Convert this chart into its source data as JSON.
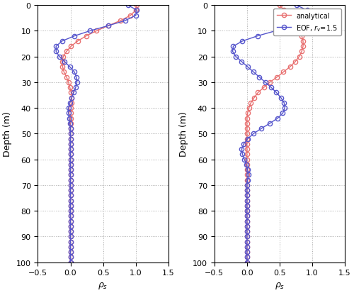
{
  "depths": [
    0,
    2,
    4,
    6,
    8,
    10,
    12,
    14,
    16,
    18,
    20,
    22,
    24,
    26,
    28,
    30,
    32,
    34,
    36,
    38,
    40,
    42,
    44,
    46,
    48,
    50,
    52,
    54,
    56,
    58,
    60,
    62,
    64,
    66,
    68,
    70,
    72,
    74,
    76,
    78,
    80,
    82,
    84,
    86,
    88,
    90,
    92,
    94,
    96,
    98,
    100
  ],
  "left_analytical": [
    1.02,
    1.0,
    0.92,
    0.77,
    0.6,
    0.42,
    0.27,
    0.14,
    0.04,
    -0.04,
    -0.09,
    -0.12,
    -0.12,
    -0.1,
    -0.07,
    -0.05,
    -0.03,
    -0.01,
    0.0,
    0.0,
    0.0,
    0.0,
    0.0,
    0.0,
    0.0,
    0.0,
    0.0,
    0.0,
    0.0,
    0.0,
    0.0,
    0.0,
    0.0,
    0.0,
    0.0,
    0.0,
    0.0,
    0.0,
    0.0,
    0.0,
    0.0,
    0.0,
    0.0,
    0.0,
    0.0,
    0.0,
    0.0,
    0.0,
    0.0,
    0.0,
    0.0
  ],
  "left_eof": [
    0.9,
    1.0,
    1.02,
    0.88,
    0.62,
    0.35,
    0.13,
    -0.05,
    -0.17,
    -0.21,
    -0.2,
    -0.15,
    -0.08,
    -0.01,
    0.04,
    0.07,
    0.08,
    0.07,
    0.05,
    0.03,
    0.01,
    -0.01,
    -0.02,
    -0.02,
    -0.01,
    -0.01,
    0.0,
    0.0,
    0.0,
    0.0,
    0.0,
    0.0,
    0.0,
    0.0,
    0.0,
    0.0,
    0.0,
    0.0,
    0.0,
    0.0,
    0.0,
    0.0,
    0.0,
    0.0,
    0.0,
    0.0,
    0.0,
    0.0,
    0.0,
    0.0,
    0.0
  ],
  "right_analytical": [
    0.53,
    0.6,
    0.67,
    0.73,
    0.78,
    0.83,
    0.86,
    0.88,
    0.89,
    0.88,
    0.85,
    0.81,
    0.74,
    0.65,
    0.55,
    0.44,
    0.34,
    0.25,
    0.17,
    0.11,
    0.07,
    0.04,
    0.02,
    0.01,
    0.0,
    0.0,
    0.0,
    0.0,
    0.0,
    0.0,
    0.0,
    0.0,
    0.0,
    0.0,
    0.0,
    0.0,
    0.0,
    0.0,
    0.0,
    0.0,
    0.0,
    0.0,
    0.0,
    0.0,
    0.0,
    0.0,
    0.0,
    0.0,
    0.0,
    0.0,
    0.0
  ],
  "right_eof": [
    0.75,
    0.9,
    1.0,
    0.92,
    0.72,
    0.45,
    0.18,
    -0.05,
    -0.2,
    -0.21,
    -0.17,
    -0.09,
    -0.01,
    0.08,
    0.17,
    0.26,
    0.35,
    0.43,
    0.5,
    0.55,
    0.56,
    0.52,
    0.43,
    0.31,
    0.18,
    0.07,
    -0.01,
    -0.06,
    -0.08,
    -0.07,
    -0.04,
    -0.01,
    0.01,
    0.02,
    0.02,
    0.01,
    0.0,
    0.0,
    0.0,
    0.0,
    0.0,
    0.0,
    0.0,
    0.0,
    0.0,
    0.0,
    0.0,
    0.0,
    0.0,
    0.0,
    0.0
  ],
  "analytical_color": "#e87070",
  "eof_color": "#5555cc",
  "xlim": [
    -0.5,
    1.5
  ],
  "xticks": [
    -0.5,
    0,
    0.5,
    1,
    1.5
  ],
  "ylim": [
    100,
    0
  ],
  "yticks": [
    0,
    10,
    20,
    30,
    40,
    50,
    60,
    70,
    80,
    90,
    100
  ],
  "ylabel": "Depth (m)",
  "background_color": "#ffffff",
  "grid_color": "#aaaaaa"
}
